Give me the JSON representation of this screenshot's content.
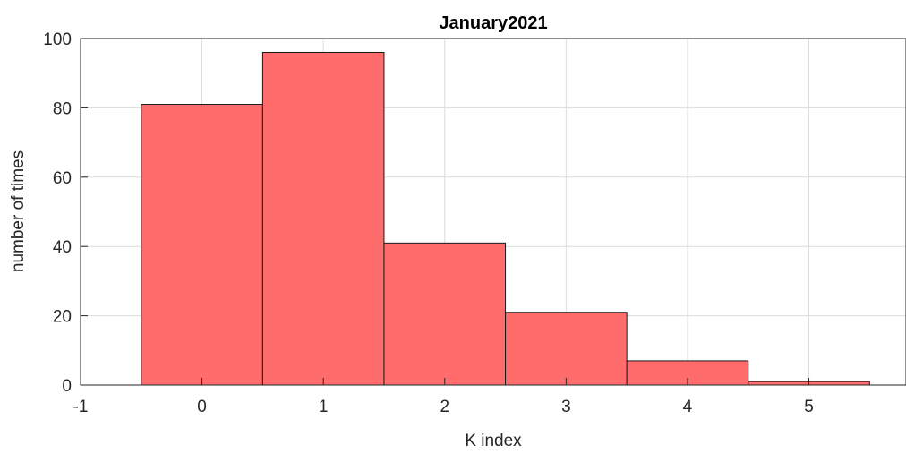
{
  "chart_data": {
    "type": "bar",
    "title": "January2021",
    "xlabel": "K index",
    "ylabel": "number of times",
    "categories": [
      0,
      1,
      2,
      3,
      4,
      5
    ],
    "values": [
      81,
      96,
      41,
      21,
      7,
      1
    ],
    "xlim": [
      -1,
      5.8
    ],
    "ylim": [
      0,
      100
    ],
    "x_ticks": [
      -1,
      0,
      1,
      2,
      3,
      4,
      5
    ],
    "y_ticks": [
      0,
      20,
      40,
      60,
      80,
      100
    ],
    "bar_width": 1,
    "grid": true,
    "colors": {
      "bar_fill": "#ff6666",
      "bar_edge": "#1a1a1a",
      "grid": "#dcdcdc",
      "axis": "#262626"
    }
  }
}
